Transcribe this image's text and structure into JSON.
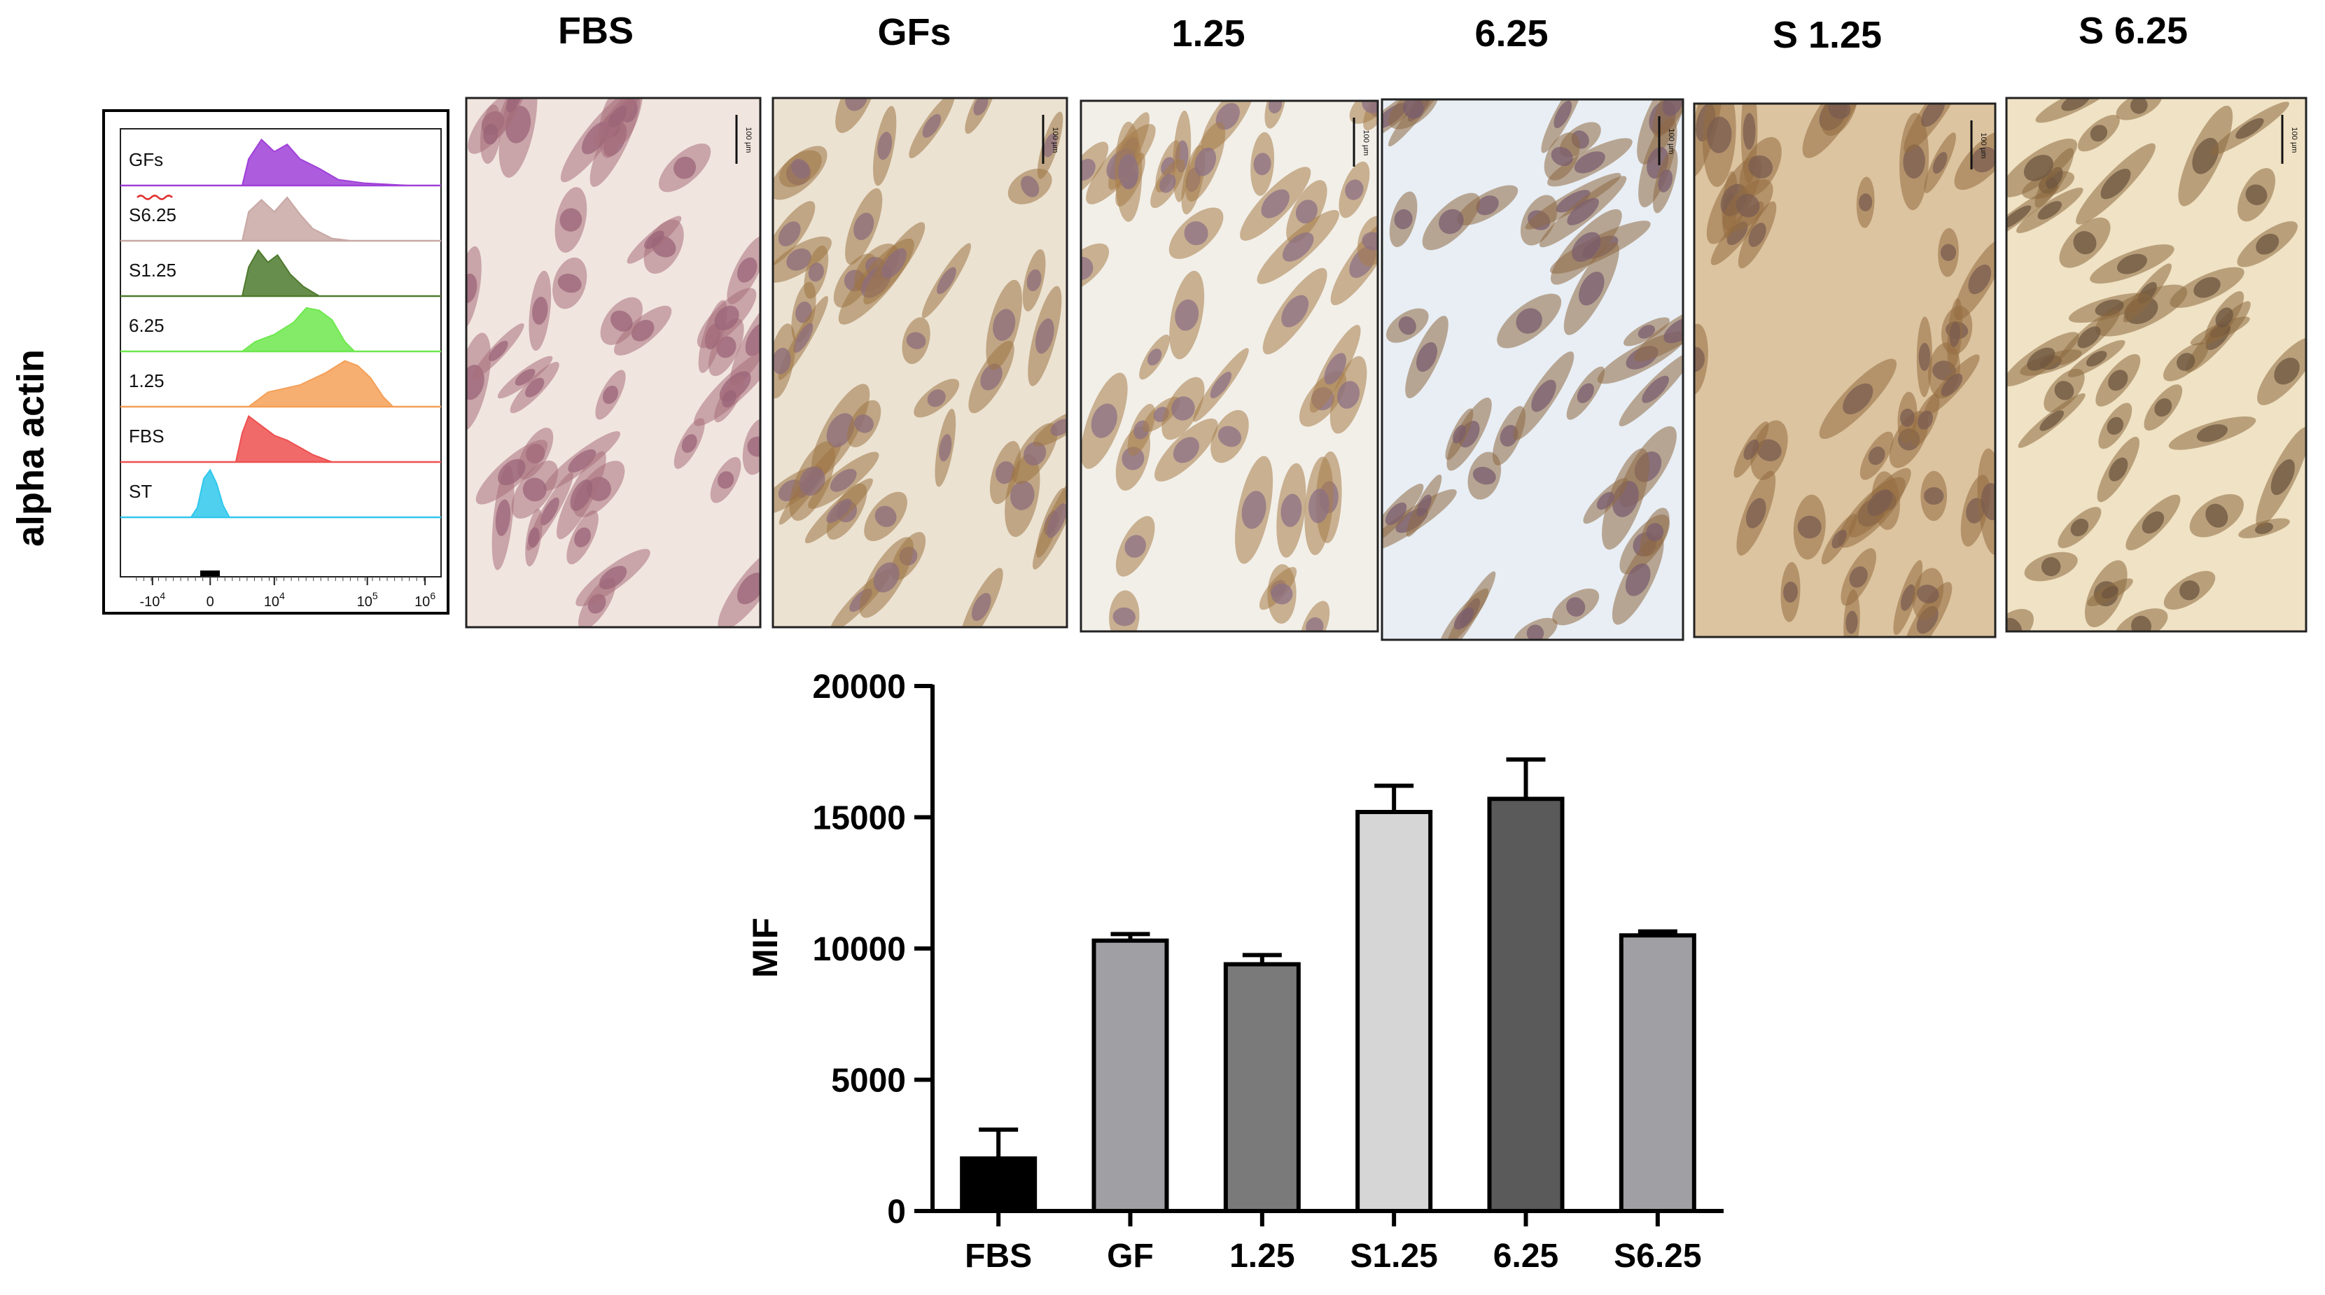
{
  "side_label": "alpha  actin",
  "panel_titles": [
    "FBS",
    "GFs",
    "1.25",
    "6.25",
    "S 1.25",
    "S 6.25"
  ],
  "scale_bar_label": "100 µm",
  "flow": {
    "rows": [
      {
        "label": "GFs",
        "color": "#a040d8"
      },
      {
        "label": "S6.25",
        "color": "#c8a8a4"
      },
      {
        "label": "S1.25",
        "color": "#4e7a2e"
      },
      {
        "label": "6.25",
        "color": "#6ee84e"
      },
      {
        "label": "1.25",
        "color": "#f4a058"
      },
      {
        "label": "FBS",
        "color": "#ee5050"
      },
      {
        "label": "ST",
        "color": "#30c8ec"
      }
    ],
    "x_ticks": [
      {
        "base": "-10",
        "exp": "4"
      },
      {
        "base": "0",
        "exp": ""
      },
      {
        "base": "10",
        "exp": "4"
      },
      {
        "base": "10",
        "exp": "5"
      },
      {
        "base": "10",
        "exp": "6"
      }
    ]
  },
  "micrograph_styles": [
    {
      "bg": "#f1e5df",
      "cell": "#a8707c",
      "nucleus": "#9a6478"
    },
    {
      "bg": "#ece2d2",
      "cell": "#9c7444",
      "nucleus": "#8c6c7c"
    },
    {
      "bg": "#f2efe8",
      "cell": "#a67c48",
      "nucleus": "#8c7084"
    },
    {
      "bg": "#e8eef4",
      "cell": "#8e6a44",
      "nucleus": "#7a5e6e"
    },
    {
      "bg": "#dcc4a0",
      "cell": "#946c40",
      "nucleus": "#7a5c50"
    },
    {
      "bg": "#f0e2c4",
      "cell": "#8c6a40",
      "nucleus": "#6e5640"
    }
  ],
  "chart_data": {
    "type": "bar",
    "categories": [
      "FBS",
      "GF",
      "1.25",
      "S1.25",
      "6.25",
      "S6.25"
    ],
    "values": [
      2000,
      10300,
      9400,
      15200,
      15700,
      10500
    ],
    "errors": [
      1100,
      250,
      350,
      1000,
      1500,
      150
    ],
    "bar_colors": [
      "#000000",
      "#a0a0a4",
      "#7a7a7a",
      "#d6d6d6",
      "#5a5a5a",
      "#a0a0a4"
    ],
    "ylabel": "MIF",
    "xlabel": "",
    "ylim": [
      0,
      20000
    ],
    "y_ticks": [
      0,
      5000,
      10000,
      15000,
      20000
    ]
  }
}
